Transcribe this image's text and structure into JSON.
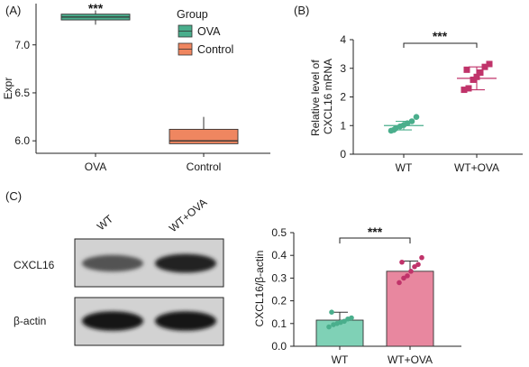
{
  "panels": {
    "a": {
      "label": "(A)"
    },
    "b": {
      "label": "(B)"
    },
    "c": {
      "label": "(C)"
    }
  },
  "chart_data": [
    {
      "type": "box",
      "panel": "(A)",
      "ylabel": "Expr",
      "ylim": [
        5.87,
        7.43
      ],
      "yticks": [
        6.0,
        6.5,
        7.0
      ],
      "ytick_labels": [
        "6.0",
        "6.5",
        "7.0"
      ],
      "categories": [
        "OVA",
        "Control"
      ],
      "boxes": [
        {
          "category": "OVA",
          "q1": 7.26,
          "median": 7.29,
          "q3": 7.32,
          "whisker_low": 7.21,
          "whisker_high": 7.36,
          "color": "#4aae8c"
        },
        {
          "category": "Control",
          "q1": 5.97,
          "median": 6.0,
          "q3": 6.12,
          "whisker_low": 5.97,
          "whisker_high": 6.25,
          "color": "#ef8660"
        }
      ],
      "significance": "***",
      "legend": {
        "title": "Group",
        "entries": [
          "OVA",
          "Control"
        ],
        "colors": [
          "#4aae8c",
          "#ef8660"
        ],
        "placement": "top-right"
      }
    },
    {
      "type": "scatter",
      "panel": "(B)",
      "ylabel": "Relative level of CXCL16 mRNA",
      "ylabel_lines": [
        "Relative level of",
        "CXCL16 mRNA"
      ],
      "ylim": [
        0,
        4
      ],
      "yticks": [
        0,
        1,
        2,
        3,
        4
      ],
      "categories": [
        "WT",
        "WT+OVA"
      ],
      "groups": [
        {
          "name": "WT",
          "mean": 1.0,
          "sd": 0.15,
          "points": [
            0.82,
            0.9,
            0.97,
            1.02,
            1.08,
            1.15,
            1.3,
            0.85
          ],
          "color": "#4aae8c",
          "marker": "circle"
        },
        {
          "name": "WT+OVA",
          "mean": 2.65,
          "sd": 0.4,
          "points": [
            2.25,
            2.3,
            2.6,
            2.7,
            2.85,
            3.05,
            3.15,
            2.95
          ],
          "color": "#c0336a",
          "marker": "square"
        }
      ],
      "significance": "***"
    },
    {
      "type": "bar",
      "panel": "(C)",
      "ylabel": "CXCL16/β-actin",
      "ylim": [
        0,
        0.5
      ],
      "yticks": [
        0.0,
        0.1,
        0.2,
        0.3,
        0.4,
        0.5
      ],
      "ytick_labels": [
        "0.0",
        "0.1",
        "0.2",
        "0.3",
        "0.4",
        "0.5"
      ],
      "categories": [
        "WT",
        "WT+OVA"
      ],
      "values": [
        0.115,
        0.33
      ],
      "errors": [
        0.035,
        0.045
      ],
      "colors": [
        "#7fd1b6",
        "#e8879f"
      ],
      "points": [
        [
          0.085,
          0.095,
          0.1,
          0.105,
          0.11,
          0.12,
          0.125,
          0.15
        ],
        [
          0.28,
          0.3,
          0.31,
          0.33,
          0.35,
          0.36,
          0.39,
          0.37
        ]
      ],
      "point_colors": [
        "#4aae8c",
        "#c0336a"
      ],
      "significance": "***"
    }
  ],
  "blot": {
    "lanes": [
      "WT",
      "WT+OVA"
    ],
    "rows": [
      "CXCL16",
      "β-actin"
    ],
    "band_intensity": [
      [
        0.55,
        0.85
      ],
      [
        0.95,
        0.95
      ]
    ]
  }
}
